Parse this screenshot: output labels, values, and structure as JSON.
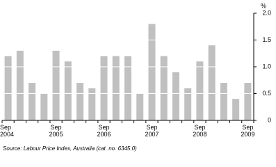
{
  "chart_data": {
    "type": "bar",
    "categories": [
      "Sep\n2004",
      null,
      null,
      null,
      "Sep\n2005",
      null,
      null,
      null,
      "Sep\n2006",
      null,
      null,
      null,
      "Sep\n2007",
      null,
      null,
      null,
      "Sep\n2008",
      null,
      null,
      null,
      "Sep\n2009"
    ],
    "values": [
      1.2,
      1.3,
      0.7,
      0.5,
      1.3,
      1.1,
      0.7,
      0.6,
      1.2,
      1.2,
      1.2,
      0.5,
      1.8,
      1.2,
      0.9,
      0.6,
      1.1,
      1.4,
      0.7,
      0.4,
      0.7
    ],
    "color": "#c0c0c0",
    "ylim": [
      0,
      2
    ],
    "yticks": [
      0,
      0.5,
      {
        "value": 1,
        "label": "1.0"
      },
      1.5,
      {
        "value": 2,
        "label": "2.0"
      }
    ],
    "y_unit": "%",
    "grid": true,
    "source": "Source: Labour Price Index, Australia (cat. no. 6345.0)"
  }
}
